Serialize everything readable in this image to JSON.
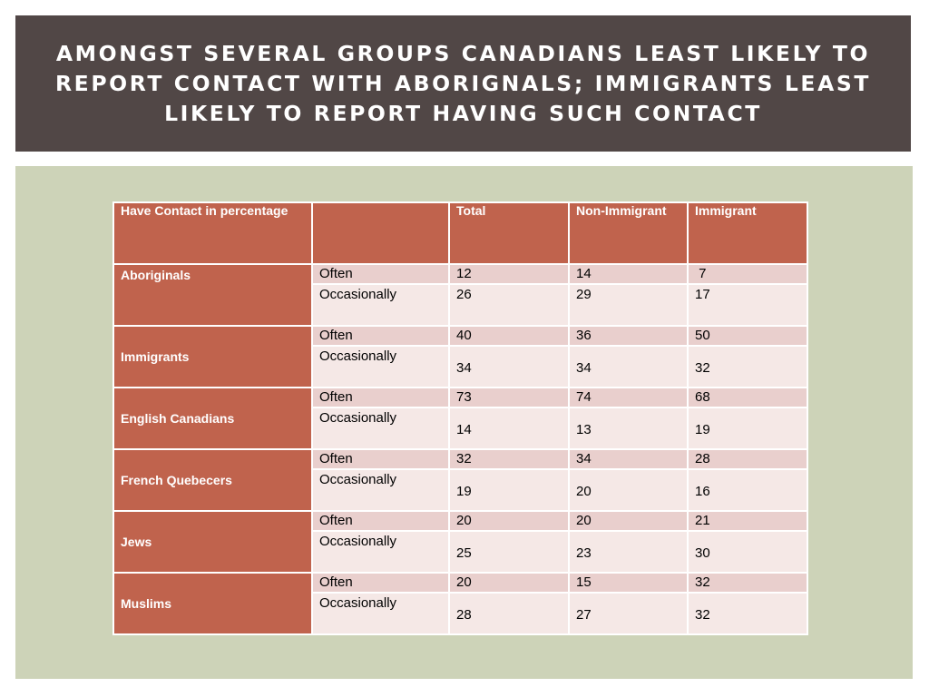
{
  "title": "AMONGST SEVERAL GROUPS CANADIANS LEAST LIKELY TO REPORT CONTACT WITH ABORIGNALS; IMMIGRANTS LEAST LIKELY TO REPORT HAVING SUCH CONTACT",
  "table": {
    "headers": [
      "Have Contact in percentage",
      "",
      "Total",
      "Non-Immigrant",
      "Immigrant"
    ],
    "groups": [
      {
        "name": "Aboriginals",
        "often": [
          "12",
          "14",
          " 7"
        ],
        "occasionally": [
          "26",
          "29",
          "17"
        ]
      },
      {
        "name": "Immigrants",
        "often": [
          "40",
          "36",
          "50"
        ],
        "occasionally": [
          "34",
          "34",
          "32"
        ]
      },
      {
        "name": "English Canadians",
        "often": [
          "73",
          "74",
          "68"
        ],
        "occasionally": [
          "14",
          "13",
          "19"
        ]
      },
      {
        "name": "French Quebecers",
        "often": [
          "32",
          "34",
          "28"
        ],
        "occasionally": [
          "19",
          "20",
          "16"
        ]
      },
      {
        "name": "Jews",
        "often": [
          "20",
          "20",
          "21"
        ],
        "occasionally": [
          "25",
          "23",
          "30"
        ]
      },
      {
        "name": "Muslims",
        "often": [
          "20",
          "15",
          "32"
        ],
        "occasionally": [
          "28",
          "27",
          "32"
        ]
      }
    ],
    "often_label": "Often",
    "occasionally_label": "Occasionally"
  },
  "colors": {
    "title_bg": "#514746",
    "panel_bg": "#cdd3b8",
    "header_bg": "#c0634d",
    "often_row_bg": "#e9cfcd",
    "occasionally_row_bg": "#f5e8e6"
  }
}
